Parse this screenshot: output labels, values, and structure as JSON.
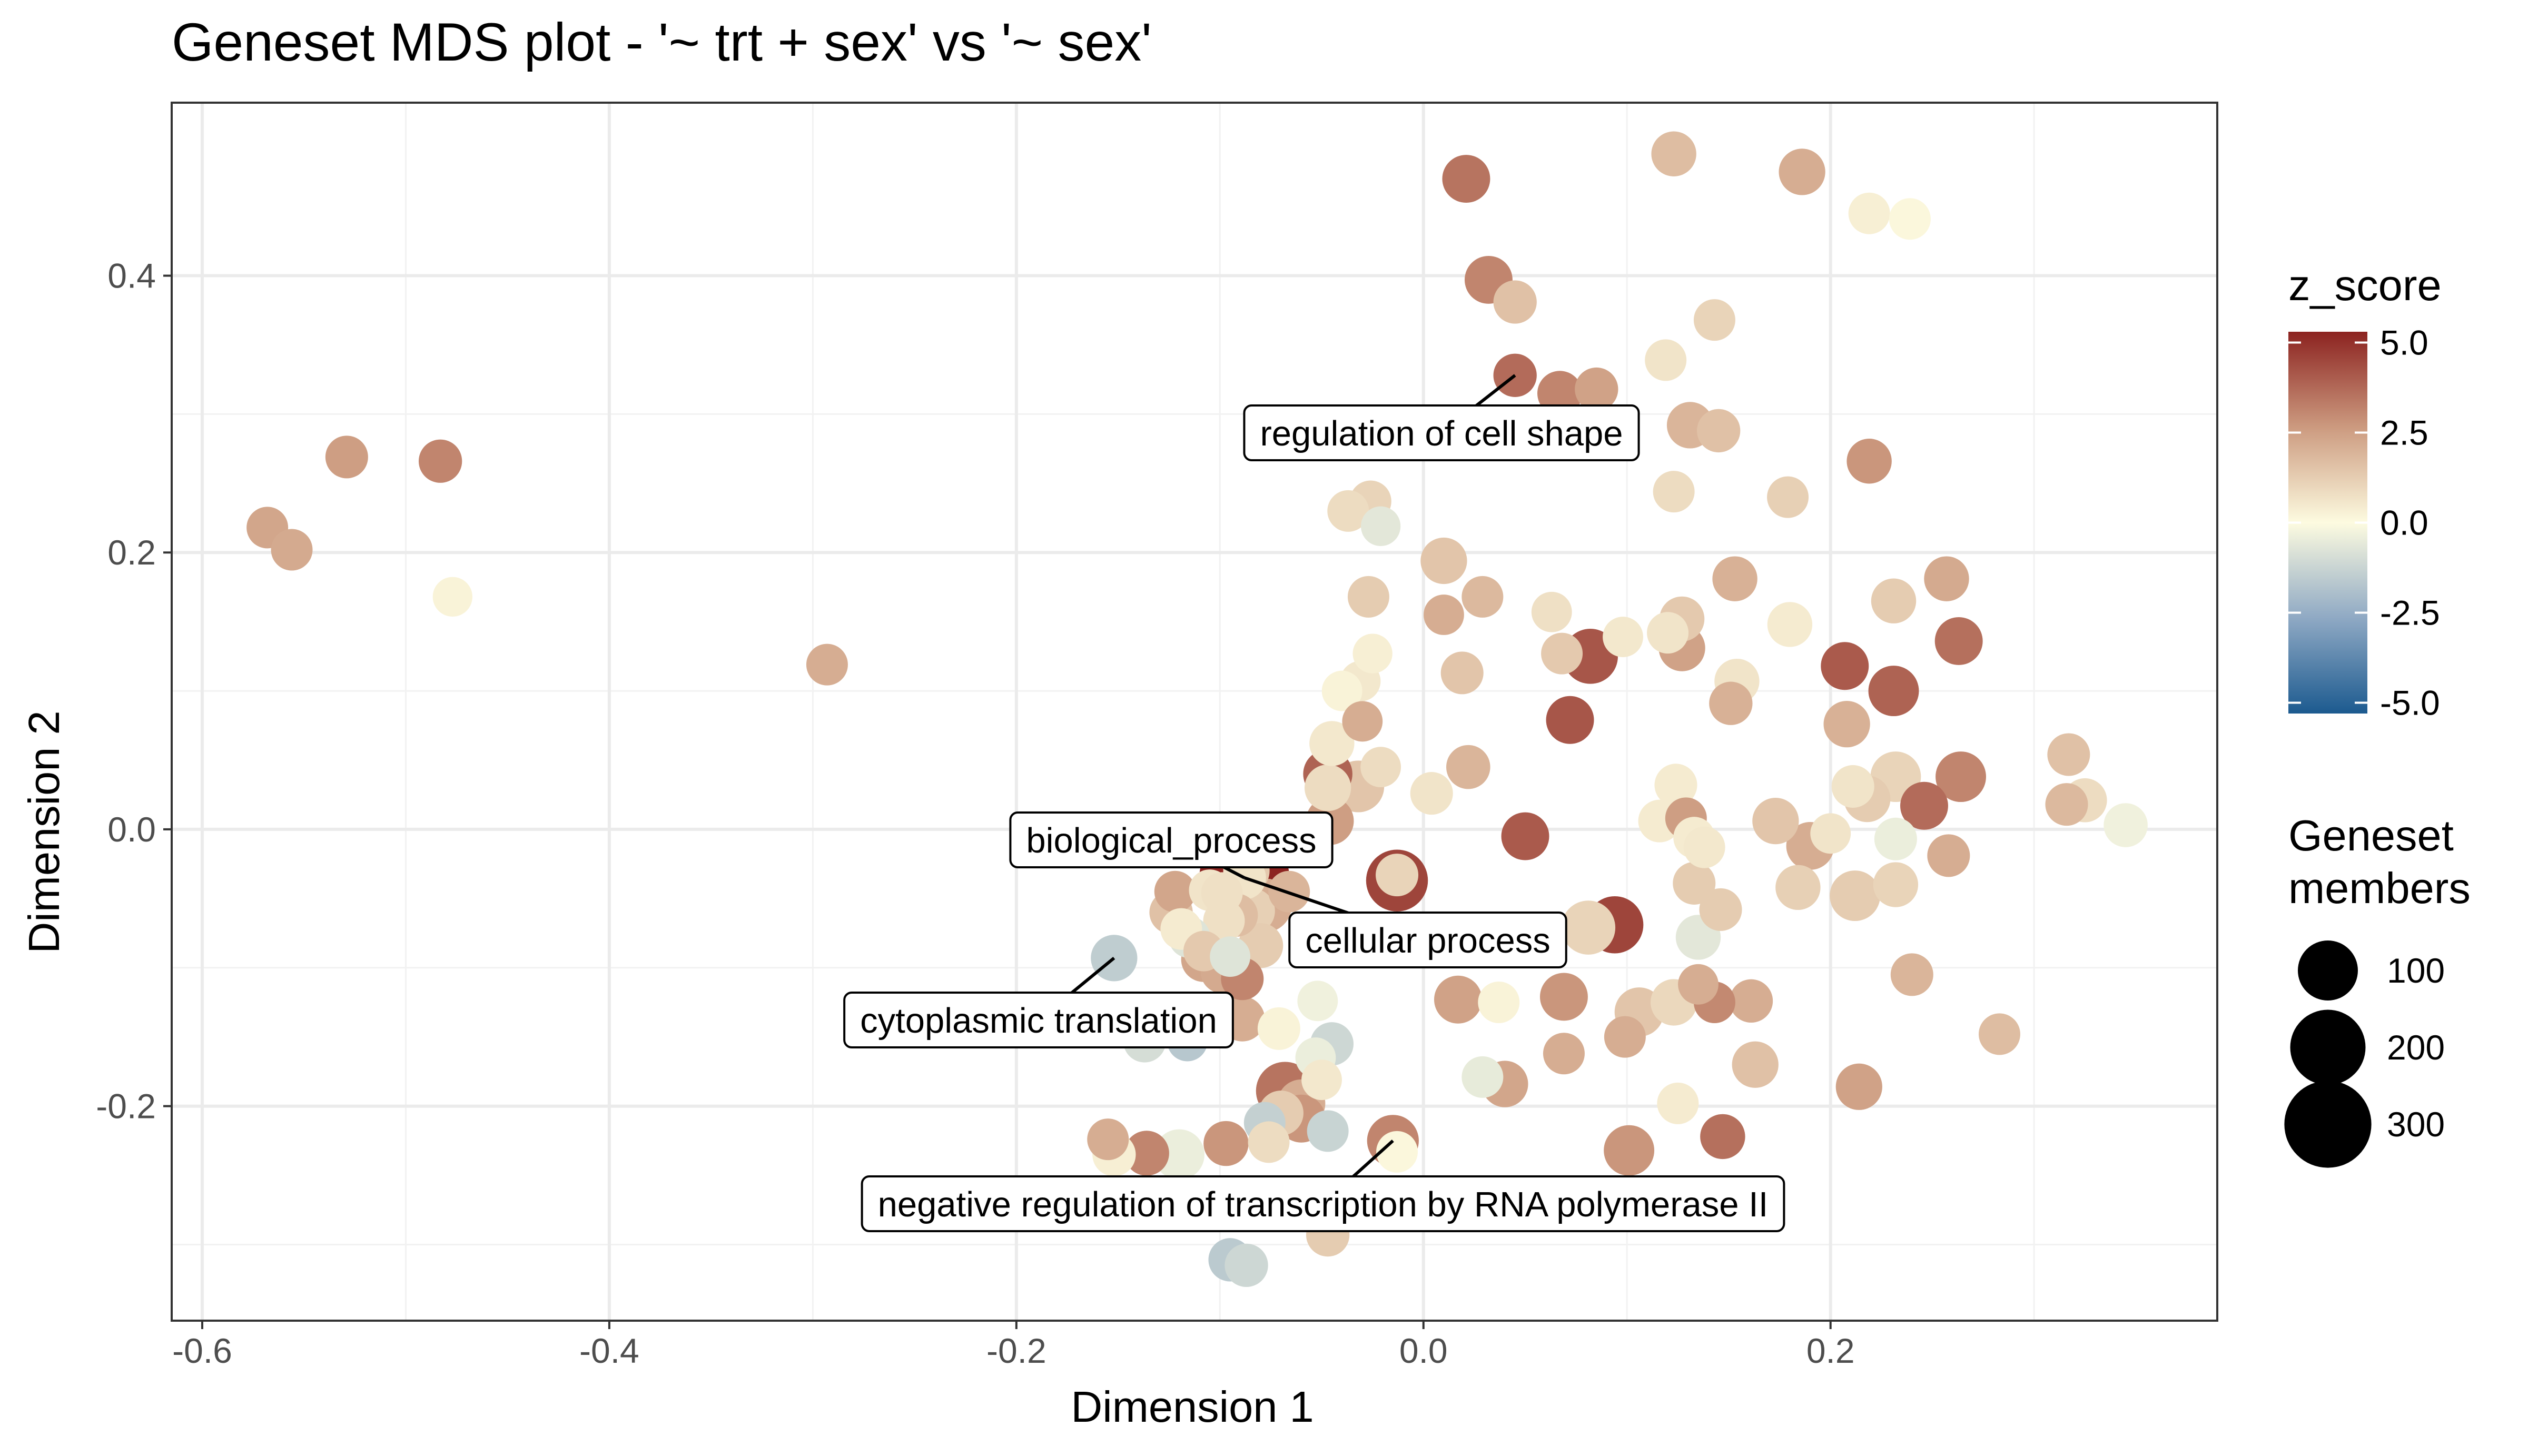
{
  "chart_data": {
    "type": "scatter",
    "title": "Geneset MDS plot - '~ trt + sex' vs '~ sex'",
    "xlabel": "Dimension 1",
    "ylabel": "Dimension 2",
    "xlim": [
      -0.615,
      0.39
    ],
    "ylim": [
      -0.355,
      0.525
    ],
    "xticks": [
      -0.6,
      -0.4,
      -0.2,
      0.0,
      0.2
    ],
    "xtick_labels": [
      "-0.6",
      "-0.4",
      "-0.2",
      "0.0",
      "0.2"
    ],
    "yticks": [
      -0.2,
      0.0,
      0.2,
      0.4
    ],
    "ytick_labels": [
      "-0.2",
      "0.0",
      "0.2",
      "0.4"
    ],
    "grid": true,
    "legend_placement": "right",
    "color_legend": {
      "title": "z_score",
      "ticks": [
        5.0,
        2.5,
        0.0,
        -2.5,
        -5.0
      ],
      "tick_labels": [
        "5.0",
        "2.5",
        "0.0",
        "-2.5",
        "-5.0"
      ],
      "range": [
        -5.3,
        5.3
      ],
      "palette": [
        "#1c5a8f",
        "#8fa9c4",
        "#fdfbe0",
        "#cc9a7f",
        "#8c2320"
      ]
    },
    "size_legend": {
      "title_lines": [
        "Geneset",
        "members"
      ],
      "values": [
        100,
        200,
        300
      ],
      "value_labels": [
        "100",
        "200",
        "300"
      ]
    },
    "labels": [
      {
        "text": "regulation of cell shape",
        "x": 0.045,
        "y": 0.328
      },
      {
        "text": "biological_process",
        "x": -0.088,
        "y": -0.035
      },
      {
        "text": "cellular process",
        "x": -0.088,
        "y": -0.035
      },
      {
        "text": "cytoplasmic translation",
        "x": -0.152,
        "y": -0.093
      },
      {
        "text": "negative regulation of transcription by RNA polymerase II",
        "x": -0.015,
        "y": -0.225
      }
    ],
    "points": [
      {
        "x": -0.568,
        "y": 0.218,
        "z": 2.2,
        "n": 25
      },
      {
        "x": -0.556,
        "y": 0.202,
        "z": 2.1,
        "n": 25
      },
      {
        "x": -0.529,
        "y": 0.269,
        "z": 2.4,
        "n": 28
      },
      {
        "x": -0.483,
        "y": 0.266,
        "z": 3.0,
        "n": 30
      },
      {
        "x": -0.477,
        "y": 0.168,
        "z": 0.2,
        "n": 20
      },
      {
        "x": -0.293,
        "y": 0.119,
        "z": 2.0,
        "n": 25
      },
      {
        "x": 0.021,
        "y": 0.47,
        "z": 3.4,
        "n": 45
      },
      {
        "x": 0.123,
        "y": 0.488,
        "z": 1.6,
        "n": 35
      },
      {
        "x": 0.186,
        "y": 0.475,
        "z": 2.0,
        "n": 40
      },
      {
        "x": 0.219,
        "y": 0.445,
        "z": 0.3,
        "n": 25
      },
      {
        "x": 0.239,
        "y": 0.441,
        "z": 0.1,
        "n": 25
      },
      {
        "x": 0.032,
        "y": 0.397,
        "z": 3.0,
        "n": 45
      },
      {
        "x": 0.045,
        "y": 0.381,
        "z": 1.5,
        "n": 30
      },
      {
        "x": 0.143,
        "y": 0.368,
        "z": 1.0,
        "n": 25
      },
      {
        "x": 0.119,
        "y": 0.339,
        "z": 0.6,
        "n": 25
      },
      {
        "x": 0.045,
        "y": 0.328,
        "z": 3.6,
        "n": 30
      },
      {
        "x": 0.067,
        "y": 0.315,
        "z": 3.0,
        "n": 35
      },
      {
        "x": 0.085,
        "y": 0.318,
        "z": 2.3,
        "n": 30
      },
      {
        "x": 0.131,
        "y": 0.292,
        "z": 1.8,
        "n": 40
      },
      {
        "x": 0.145,
        "y": 0.288,
        "z": 1.5,
        "n": 30
      },
      {
        "x": 0.219,
        "y": 0.266,
        "z": 2.6,
        "n": 35
      },
      {
        "x": 0.123,
        "y": 0.244,
        "z": 0.8,
        "n": 25
      },
      {
        "x": 0.179,
        "y": 0.24,
        "z": 1.1,
        "n": 25
      },
      {
        "x": -0.026,
        "y": 0.237,
        "z": 1.0,
        "n": 25
      },
      {
        "x": -0.037,
        "y": 0.23,
        "z": 0.8,
        "n": 25
      },
      {
        "x": -0.021,
        "y": 0.219,
        "z": -0.6,
        "n": 20
      },
      {
        "x": 0.01,
        "y": 0.194,
        "z": 1.4,
        "n": 40
      },
      {
        "x": 0.153,
        "y": 0.181,
        "z": 1.9,
        "n": 35
      },
      {
        "x": 0.257,
        "y": 0.181,
        "z": 2.1,
        "n": 35
      },
      {
        "x": -0.027,
        "y": 0.168,
        "z": 1.2,
        "n": 25
      },
      {
        "x": 0.029,
        "y": 0.168,
        "z": 1.7,
        "n": 25
      },
      {
        "x": 0.231,
        "y": 0.165,
        "z": 1.2,
        "n": 35
      },
      {
        "x": 0.01,
        "y": 0.155,
        "z": 2.0,
        "n": 22
      },
      {
        "x": 0.063,
        "y": 0.157,
        "z": 0.7,
        "n": 22
      },
      {
        "x": 0.127,
        "y": 0.152,
        "z": 1.3,
        "n": 35
      },
      {
        "x": 0.18,
        "y": 0.148,
        "z": 0.4,
        "n": 35
      },
      {
        "x": 0.12,
        "y": 0.142,
        "z": 0.6,
        "n": 25
      },
      {
        "x": 0.098,
        "y": 0.139,
        "z": 0.5,
        "n": 22
      },
      {
        "x": 0.263,
        "y": 0.136,
        "z": 3.5,
        "n": 45
      },
      {
        "x": 0.127,
        "y": 0.131,
        "z": 2.3,
        "n": 40
      },
      {
        "x": 0.082,
        "y": 0.125,
        "z": 4.1,
        "n": 75
      },
      {
        "x": 0.068,
        "y": 0.127,
        "z": 1.3,
        "n": 25
      },
      {
        "x": -0.025,
        "y": 0.127,
        "z": 0.3,
        "n": 20
      },
      {
        "x": 0.207,
        "y": 0.118,
        "z": 4.0,
        "n": 45
      },
      {
        "x": 0.019,
        "y": 0.113,
        "z": 1.4,
        "n": 28
      },
      {
        "x": -0.031,
        "y": 0.107,
        "z": 0.5,
        "n": 22
      },
      {
        "x": -0.04,
        "y": 0.1,
        "z": 0.2,
        "n": 22
      },
      {
        "x": 0.154,
        "y": 0.107,
        "z": 0.6,
        "n": 35
      },
      {
        "x": 0.231,
        "y": 0.1,
        "z": 3.8,
        "n": 55
      },
      {
        "x": 0.151,
        "y": 0.091,
        "z": 1.9,
        "n": 30
      },
      {
        "x": 0.072,
        "y": 0.079,
        "z": 4.1,
        "n": 45
      },
      {
        "x": -0.03,
        "y": 0.078,
        "z": 2.0,
        "n": 22
      },
      {
        "x": 0.208,
        "y": 0.076,
        "z": 1.9,
        "n": 40
      },
      {
        "x": -0.045,
        "y": 0.062,
        "z": 0.5,
        "n": 35
      },
      {
        "x": 0.317,
        "y": 0.054,
        "z": 1.5,
        "n": 28
      },
      {
        "x": 0.022,
        "y": 0.045,
        "z": 1.8,
        "n": 32
      },
      {
        "x": -0.021,
        "y": 0.045,
        "z": 0.8,
        "n": 22
      },
      {
        "x": -0.047,
        "y": 0.04,
        "z": 3.8,
        "n": 50
      },
      {
        "x": 0.264,
        "y": 0.038,
        "z": 3.0,
        "n": 55
      },
      {
        "x": 0.232,
        "y": 0.038,
        "z": 1.0,
        "n": 55
      },
      {
        "x": -0.032,
        "y": 0.031,
        "z": 1.4,
        "n": 60
      },
      {
        "x": -0.047,
        "y": 0.03,
        "z": 0.8,
        "n": 40
      },
      {
        "x": 0.124,
        "y": 0.032,
        "z": 0.4,
        "n": 28
      },
      {
        "x": 0.211,
        "y": 0.031,
        "z": 0.6,
        "n": 28
      },
      {
        "x": 0.004,
        "y": 0.026,
        "z": 0.6,
        "n": 28
      },
      {
        "x": 0.218,
        "y": 0.022,
        "z": 1.2,
        "n": 40
      },
      {
        "x": 0.325,
        "y": 0.021,
        "z": 0.8,
        "n": 32
      },
      {
        "x": 0.316,
        "y": 0.018,
        "z": 1.7,
        "n": 28
      },
      {
        "x": 0.246,
        "y": 0.017,
        "z": 3.6,
        "n": 45
      },
      {
        "x": 0.129,
        "y": 0.008,
        "z": 2.4,
        "n": 25
      },
      {
        "x": 0.173,
        "y": 0.006,
        "z": 1.4,
        "n": 40
      },
      {
        "x": 0.116,
        "y": 0.006,
        "z": 0.4,
        "n": 28
      },
      {
        "x": 0.345,
        "y": 0.003,
        "z": -0.3,
        "n": 32
      },
      {
        "x": -0.046,
        "y": 0.006,
        "z": 2.4,
        "n": 45
      },
      {
        "x": 0.05,
        "y": -0.005,
        "z": 4.0,
        "n": 45
      },
      {
        "x": 0.2,
        "y": -0.003,
        "z": 0.6,
        "n": 22
      },
      {
        "x": 0.133,
        "y": -0.006,
        "z": 0.4,
        "n": 25
      },
      {
        "x": 0.232,
        "y": -0.007,
        "z": -0.4,
        "n": 28
      },
      {
        "x": 0.19,
        "y": -0.012,
        "z": 2.0,
        "n": 45
      },
      {
        "x": 0.138,
        "y": -0.013,
        "z": 0.5,
        "n": 25
      },
      {
        "x": 0.258,
        "y": -0.019,
        "z": 2.0,
        "n": 28
      },
      {
        "x": -0.087,
        "y": -0.03,
        "z": 1.3,
        "n": 40
      },
      {
        "x": -0.088,
        "y": -0.035,
        "z": 5.3,
        "n": 330
      },
      {
        "x": -0.088,
        "y": -0.035,
        "z": 0.6,
        "n": 30
      },
      {
        "x": -0.013,
        "y": -0.037,
        "z": 4.5,
        "n": 110
      },
      {
        "x": -0.013,
        "y": -0.033,
        "z": 1.0,
        "n": 28
      },
      {
        "x": 0.133,
        "y": -0.039,
        "z": 1.2,
        "n": 28
      },
      {
        "x": 0.232,
        "y": -0.04,
        "z": 1.0,
        "n": 35
      },
      {
        "x": 0.184,
        "y": -0.042,
        "z": 1.1,
        "n": 35
      },
      {
        "x": -0.122,
        "y": -0.045,
        "z": 2.2,
        "n": 25
      },
      {
        "x": -0.105,
        "y": -0.044,
        "z": 0.6,
        "n": 25
      },
      {
        "x": -0.099,
        "y": -0.046,
        "z": 0.7,
        "n": 25
      },
      {
        "x": -0.066,
        "y": -0.045,
        "z": 1.8,
        "n": 25
      },
      {
        "x": 0.212,
        "y": -0.048,
        "z": 1.2,
        "n": 55
      },
      {
        "x": -0.078,
        "y": -0.055,
        "z": 2.0,
        "n": 70
      },
      {
        "x": 0.094,
        "y": -0.069,
        "z": 4.5,
        "n": 85
      },
      {
        "x": 0.081,
        "y": -0.071,
        "z": 1.0,
        "n": 70
      },
      {
        "x": -0.084,
        "y": -0.059,
        "z": 1.1,
        "n": 35
      },
      {
        "x": -0.092,
        "y": -0.062,
        "z": 1.6,
        "n": 30
      },
      {
        "x": -0.098,
        "y": -0.066,
        "z": 0.7,
        "n": 25
      },
      {
        "x": -0.124,
        "y": -0.06,
        "z": 1.5,
        "n": 30
      },
      {
        "x": -0.08,
        "y": -0.084,
        "z": 1.2,
        "n": 35
      },
      {
        "x": -0.115,
        "y": -0.078,
        "z": -0.7,
        "n": 25
      },
      {
        "x": -0.119,
        "y": -0.072,
        "z": 0.4,
        "n": 25
      },
      {
        "x": 0.135,
        "y": -0.078,
        "z": -0.6,
        "n": 35
      },
      {
        "x": 0.146,
        "y": -0.058,
        "z": 1.2,
        "n": 28
      },
      {
        "x": -0.108,
        "y": -0.088,
        "z": 1.3,
        "n": 22
      },
      {
        "x": -0.095,
        "y": -0.092,
        "z": -0.7,
        "n": 22
      },
      {
        "x": -0.152,
        "y": -0.093,
        "z": -1.4,
        "n": 40
      },
      {
        "x": -0.108,
        "y": -0.094,
        "z": 2.2,
        "n": 35
      },
      {
        "x": -0.099,
        "y": -0.103,
        "z": 2.1,
        "n": 28
      },
      {
        "x": -0.089,
        "y": -0.108,
        "z": 3.0,
        "n": 28
      },
      {
        "x": 0.24,
        "y": -0.105,
        "z": 1.8,
        "n": 28
      },
      {
        "x": 0.017,
        "y": -0.123,
        "z": 2.3,
        "n": 45
      },
      {
        "x": 0.069,
        "y": -0.121,
        "z": 2.6,
        "n": 45
      },
      {
        "x": 0.037,
        "y": -0.125,
        "z": 0.2,
        "n": 25
      },
      {
        "x": 0.106,
        "y": -0.132,
        "z": 1.4,
        "n": 50
      },
      {
        "x": 0.123,
        "y": -0.125,
        "z": 0.9,
        "n": 40
      },
      {
        "x": 0.143,
        "y": -0.125,
        "z": 2.9,
        "n": 25
      },
      {
        "x": 0.161,
        "y": -0.124,
        "z": 2.0,
        "n": 30
      },
      {
        "x": 0.135,
        "y": -0.112,
        "z": 2.0,
        "n": 22
      },
      {
        "x": -0.089,
        "y": -0.137,
        "z": 2.0,
        "n": 35
      },
      {
        "x": 0.099,
        "y": -0.15,
        "z": 2.0,
        "n": 25
      },
      {
        "x": -0.137,
        "y": -0.153,
        "z": -0.9,
        "n": 28
      },
      {
        "x": -0.116,
        "y": -0.153,
        "z": -1.6,
        "n": 22
      },
      {
        "x": -0.071,
        "y": -0.144,
        "z": 0.2,
        "n": 28
      },
      {
        "x": -0.045,
        "y": -0.155,
        "z": -1.1,
        "n": 30
      },
      {
        "x": -0.052,
        "y": -0.124,
        "z": -0.3,
        "n": 22
      },
      {
        "x": 0.283,
        "y": -0.148,
        "z": 1.6,
        "n": 25
      },
      {
        "x": 0.069,
        "y": -0.162,
        "z": 2.0,
        "n": 25
      },
      {
        "x": -0.053,
        "y": -0.165,
        "z": -0.4,
        "n": 22
      },
      {
        "x": 0.163,
        "y": -0.17,
        "z": 1.5,
        "n": 40
      },
      {
        "x": -0.05,
        "y": -0.181,
        "z": 0.5,
        "n": 22
      },
      {
        "x": 0.029,
        "y": -0.179,
        "z": -0.5,
        "n": 25
      },
      {
        "x": 0.04,
        "y": -0.184,
        "z": 2.2,
        "n": 40
      },
      {
        "x": 0.214,
        "y": -0.186,
        "z": 2.3,
        "n": 40
      },
      {
        "x": -0.068,
        "y": -0.189,
        "z": 3.4,
        "n": 90
      },
      {
        "x": -0.06,
        "y": -0.198,
        "z": 2.0,
        "n": 45
      },
      {
        "x": 0.125,
        "y": -0.198,
        "z": 0.4,
        "n": 25
      },
      {
        "x": -0.07,
        "y": -0.205,
        "z": 1.2,
        "n": 35
      },
      {
        "x": -0.06,
        "y": -0.209,
        "z": 2.6,
        "n": 45
      },
      {
        "x": -0.078,
        "y": -0.212,
        "z": -1.3,
        "n": 25
      },
      {
        "x": -0.047,
        "y": -0.218,
        "z": -1.2,
        "n": 25
      },
      {
        "x": 0.147,
        "y": -0.222,
        "z": 3.5,
        "n": 35
      },
      {
        "x": -0.015,
        "y": -0.225,
        "z": 3.0,
        "n": 60
      },
      {
        "x": -0.155,
        "y": -0.224,
        "z": 2.0,
        "n": 25
      },
      {
        "x": -0.097,
        "y": -0.227,
        "z": 2.6,
        "n": 35
      },
      {
        "x": -0.076,
        "y": -0.226,
        "z": 0.8,
        "n": 25
      },
      {
        "x": -0.152,
        "y": -0.235,
        "z": 0.3,
        "n": 30
      },
      {
        "x": -0.136,
        "y": -0.234,
        "z": 3.0,
        "n": 35
      },
      {
        "x": -0.12,
        "y": -0.235,
        "z": -0.4,
        "n": 55
      },
      {
        "x": 0.101,
        "y": -0.232,
        "z": 2.6,
        "n": 55
      },
      {
        "x": -0.013,
        "y": -0.233,
        "z": 0.1,
        "n": 25
      },
      {
        "x": -0.047,
        "y": -0.293,
        "z": 1.2,
        "n": 30
      },
      {
        "x": -0.095,
        "y": -0.311,
        "z": -1.5,
        "n": 30
      },
      {
        "x": -0.087,
        "y": -0.315,
        "z": -1.1,
        "n": 30
      }
    ]
  }
}
